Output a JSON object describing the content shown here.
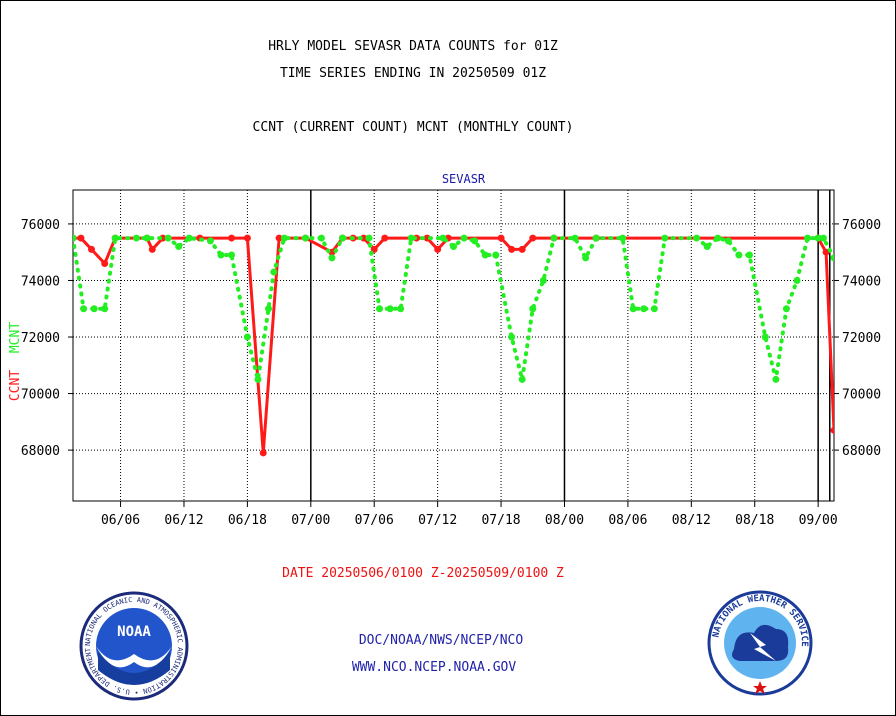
{
  "header": {
    "title1": "HRLY MODEL SEVASR DATA COUNTS for 01Z",
    "title2": "TIME SERIES ENDING IN 20250509 01Z",
    "subtitle": "CCNT (CURRENT COUNT) MCNT (MONTHLY COUNT)"
  },
  "footer": {
    "date_range": "DATE 20250506/0100 Z-20250509/0100 Z",
    "org": "DOC/NOAA/NWS/NCEP/NCO",
    "url": "WWW.NCO.NCEP.NOAA.GOV"
  },
  "logos": {
    "noaa": {
      "ring_text": "NATIONAL OCEANIC AND ATMOSPHERIC ADMINISTRATION • U.S. DEPARTMENT OF COMMERCE •",
      "center_text": "NOAA"
    },
    "nws": {
      "ring_text": "NATIONAL WEATHER SERVICE"
    }
  },
  "colors": {
    "ccnt": "#ff1a1a",
    "mcnt": "#22ee22",
    "series_title": "#1a1aa8",
    "footer_red": "#ee1111",
    "footer_blue": "#2222aa"
  },
  "chart_data": {
    "type": "line",
    "panel_title": "SEVASR",
    "ylabel_ccnt": "CCNT",
    "ylabel_mcnt": "MCNT",
    "ylim": [
      66200,
      77200
    ],
    "yticks": [
      68000,
      70000,
      72000,
      74000,
      76000
    ],
    "ytick_labels": [
      "68000",
      "70000",
      "72000",
      "74000",
      "76000"
    ],
    "xticks": [
      {
        "x": 9,
        "label": "06/06"
      },
      {
        "x": 21,
        "label": "06/12"
      },
      {
        "x": 33,
        "label": "06/18"
      },
      {
        "x": 45,
        "label": "07/00"
      },
      {
        "x": 57,
        "label": "07/06"
      },
      {
        "x": 69,
        "label": "07/12"
      },
      {
        "x": 81,
        "label": "07/18"
      },
      {
        "x": 93,
        "label": "08/00"
      },
      {
        "x": 105,
        "label": "08/06"
      },
      {
        "x": 117,
        "label": "08/12"
      },
      {
        "x": 129,
        "label": "08/18"
      },
      {
        "x": 141,
        "label": "09/00"
      }
    ],
    "xlim": [
      0,
      144
    ],
    "day_boundaries": [
      45,
      93,
      141
    ],
    "grid": true,
    "series": [
      {
        "name": "CCNT",
        "color": "#ff1a1a",
        "style": "solid",
        "points": [
          [
            0,
            75500
          ],
          [
            1.5,
            75500
          ],
          [
            3.5,
            75100
          ],
          [
            6,
            74600
          ],
          [
            8,
            75500
          ],
          [
            14,
            75500
          ],
          [
            15,
            75100
          ],
          [
            17,
            75500
          ],
          [
            24,
            75500
          ],
          [
            30,
            75500
          ],
          [
            33,
            75500
          ],
          [
            36,
            67900
          ],
          [
            39,
            75500
          ],
          [
            44,
            75500
          ],
          [
            49,
            75000
          ],
          [
            51,
            75500
          ],
          [
            53,
            75500
          ],
          [
            55,
            75500
          ],
          [
            57,
            75100
          ],
          [
            59,
            75500
          ],
          [
            65,
            75500
          ],
          [
            67,
            75500
          ],
          [
            69,
            75100
          ],
          [
            71,
            75500
          ],
          [
            81,
            75500
          ],
          [
            83,
            75100
          ],
          [
            85,
            75100
          ],
          [
            87,
            75500
          ],
          [
            91,
            75500
          ],
          [
            99,
            75500
          ],
          [
            141,
            75500
          ],
          [
            142.5,
            75000
          ],
          [
            144,
            68700
          ],
          [
            145,
            75500
          ]
        ]
      },
      {
        "name": "MCNT",
        "color": "#22ee22",
        "style": "dotted",
        "points": [
          [
            0,
            75500
          ],
          [
            2,
            73000
          ],
          [
            4,
            73000
          ],
          [
            6,
            73000
          ],
          [
            8,
            75500
          ],
          [
            12,
            75500
          ],
          [
            14,
            75500
          ],
          [
            18,
            75500
          ],
          [
            20,
            75200
          ],
          [
            22,
            75500
          ],
          [
            26,
            75400
          ],
          [
            28,
            74900
          ],
          [
            30,
            74900
          ],
          [
            33,
            72000
          ],
          [
            35,
            70500
          ],
          [
            37,
            73000
          ],
          [
            38,
            74300
          ],
          [
            40,
            75500
          ],
          [
            44,
            75500
          ],
          [
            47,
            75500
          ],
          [
            49,
            74800
          ],
          [
            51,
            75500
          ],
          [
            56,
            75500
          ],
          [
            58,
            73000
          ],
          [
            60,
            73000
          ],
          [
            62,
            73000
          ],
          [
            64,
            75500
          ],
          [
            70,
            75500
          ],
          [
            72,
            75200
          ],
          [
            74,
            75500
          ],
          [
            76,
            75400
          ],
          [
            78,
            74900
          ],
          [
            80,
            74900
          ],
          [
            83,
            72000
          ],
          [
            85,
            70500
          ],
          [
            87,
            73000
          ],
          [
            89,
            74000
          ],
          [
            91,
            75500
          ],
          [
            95,
            75500
          ],
          [
            97,
            74800
          ],
          [
            99,
            75500
          ],
          [
            104,
            75500
          ],
          [
            106,
            73000
          ],
          [
            108,
            73000
          ],
          [
            110,
            73000
          ],
          [
            112,
            75500
          ],
          [
            118,
            75500
          ],
          [
            120,
            75200
          ],
          [
            122,
            75500
          ],
          [
            124,
            75400
          ],
          [
            126,
            74900
          ],
          [
            128,
            74900
          ],
          [
            131,
            72000
          ],
          [
            133,
            70500
          ],
          [
            135,
            73000
          ],
          [
            137,
            74000
          ],
          [
            139,
            75500
          ],
          [
            141,
            75500
          ],
          [
            142,
            75500
          ],
          [
            144,
            74800
          ],
          [
            146,
            75500
          ],
          [
            148,
            75500
          ]
        ]
      }
    ]
  }
}
